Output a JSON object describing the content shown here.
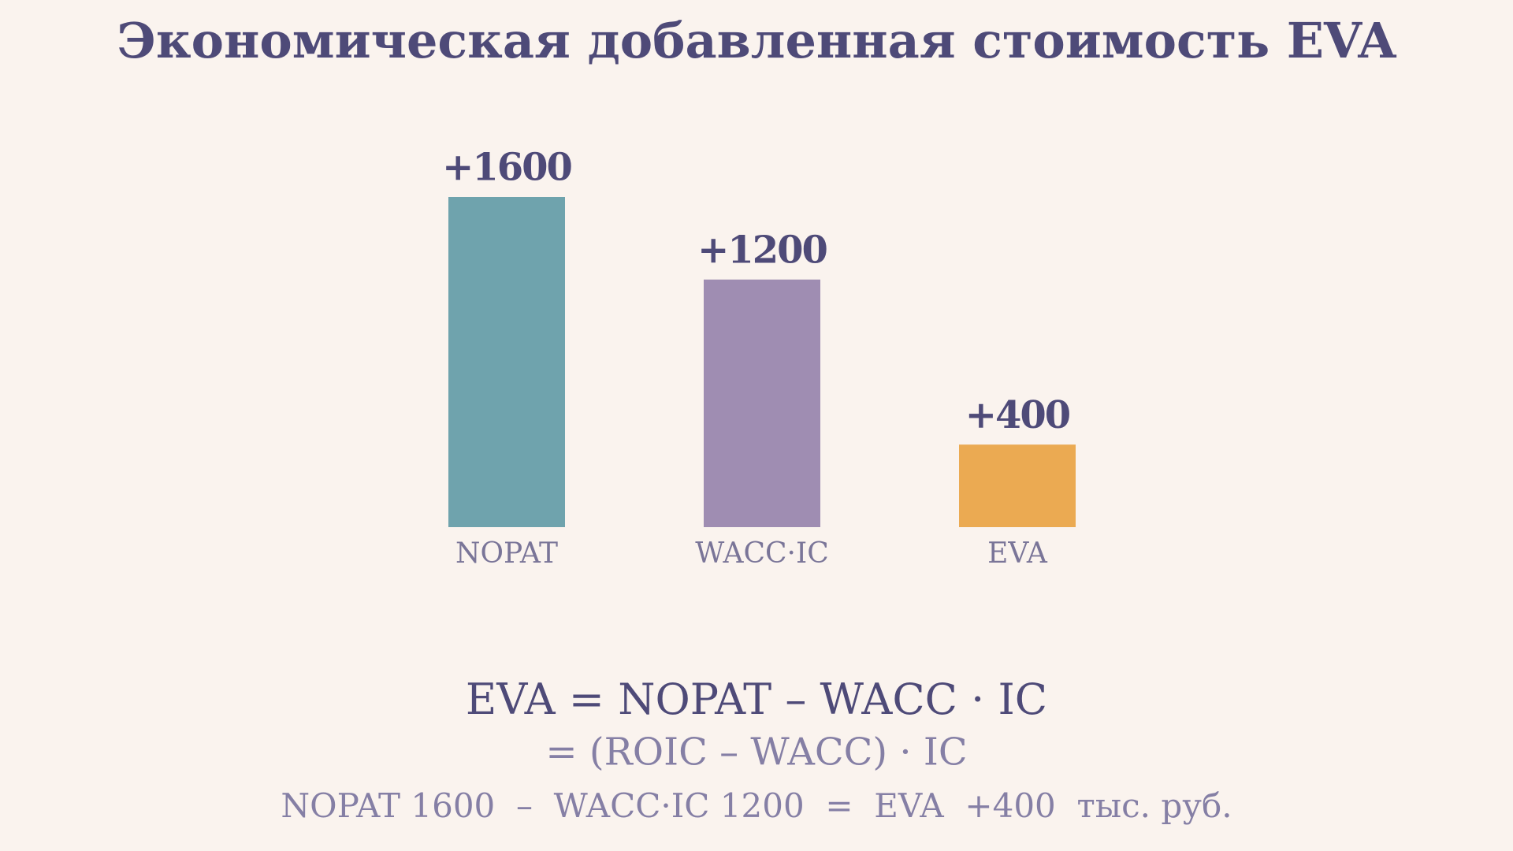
{
  "chart_data": {
    "type": "bar",
    "title": "Экономическая добавленная стоимость EVA",
    "categories": [
      "NOPAT",
      "WACC·IC",
      "EVA"
    ],
    "values": [
      1600,
      1200,
      400
    ],
    "value_labels": [
      "+1600",
      "+1200",
      "+400"
    ],
    "colors": [
      "#6fa3ad",
      "#9f8db2",
      "#ebaa52"
    ],
    "annotations": [
      "EVA = NOPAT – WACC · IC",
      "= (ROIC – WACC) · IC",
      "NOPAT 1600  –  WACC·IC 1200  =  EVA  +400  тыс. руб."
    ]
  }
}
